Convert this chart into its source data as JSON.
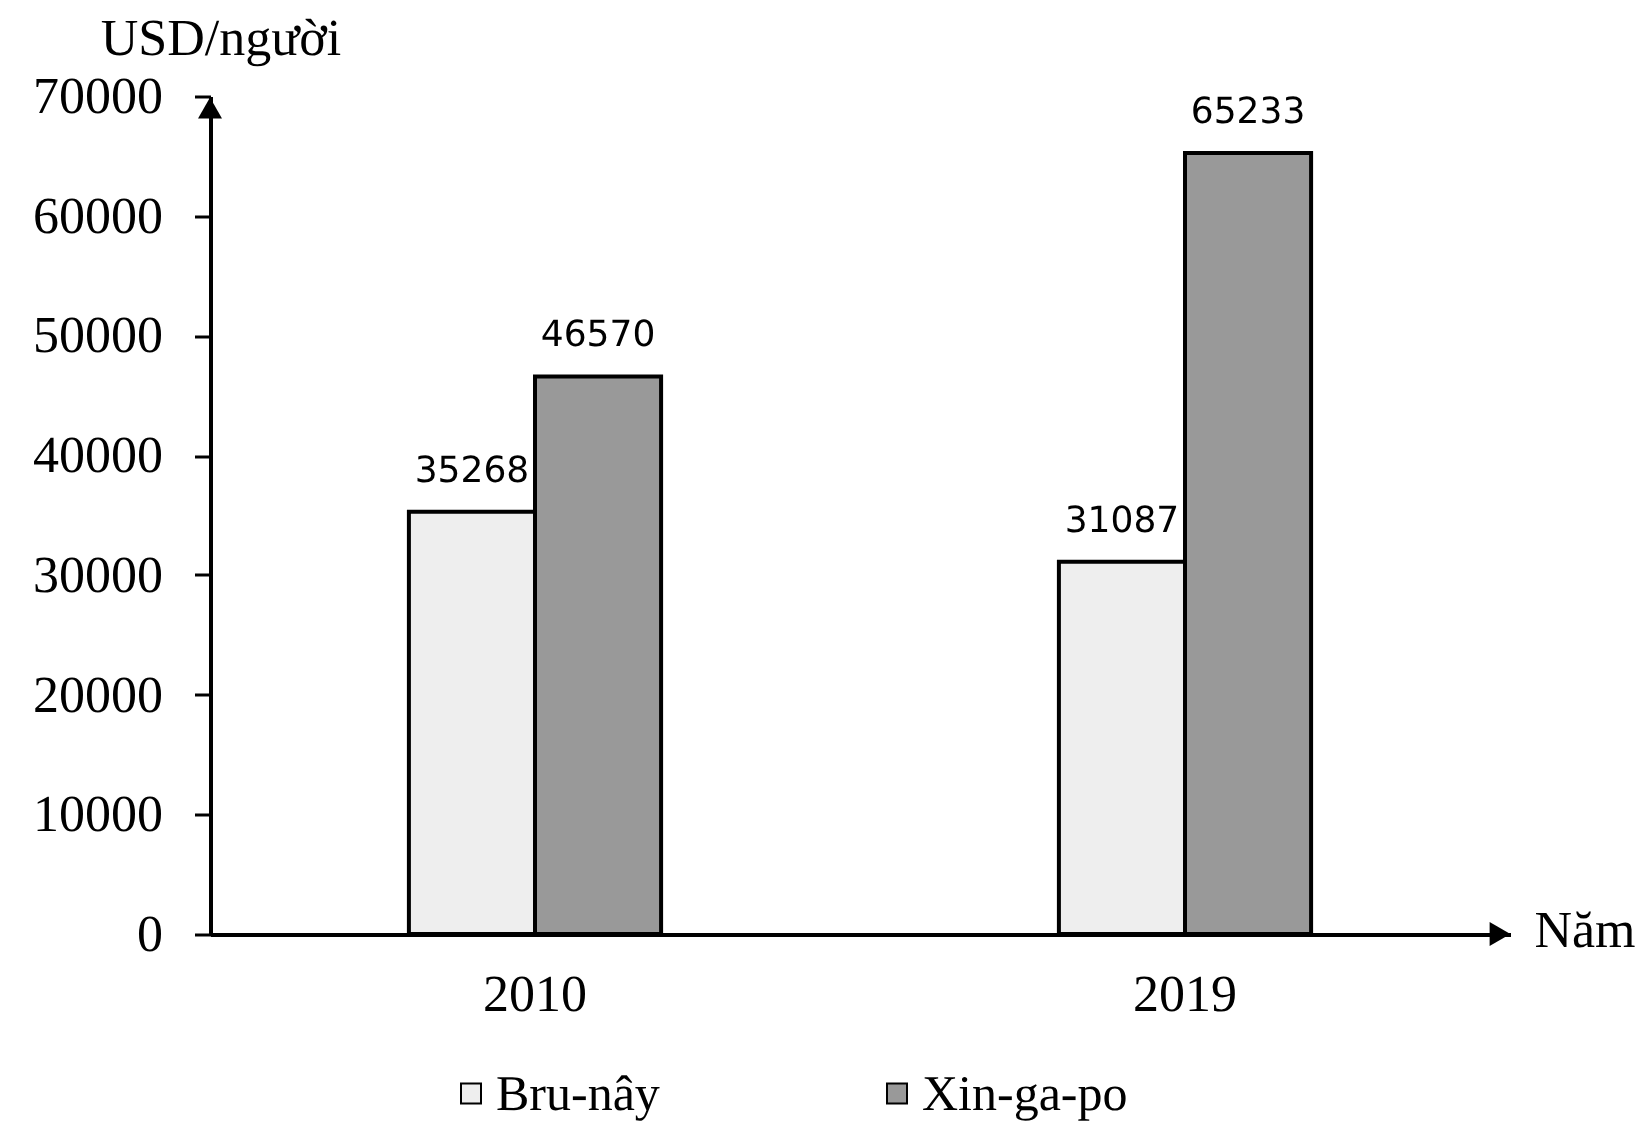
{
  "chart_data": {
    "type": "bar",
    "xlabel": "Năm",
    "ylabel": "USD/người",
    "categories": [
      "2010",
      "2019"
    ],
    "series": [
      {
        "name": "Bru-nây",
        "color": "#eeeeee",
        "values": [
          35268,
          31087
        ]
      },
      {
        "name": "Xin-ga-po",
        "color": "#999999",
        "values": [
          46570,
          65233
        ]
      }
    ],
    "ylim": [
      0,
      70000
    ],
    "yticks": [
      0,
      10000,
      20000,
      30000,
      40000,
      50000,
      60000,
      70000
    ],
    "data_labels": true,
    "legend": "bottom"
  }
}
